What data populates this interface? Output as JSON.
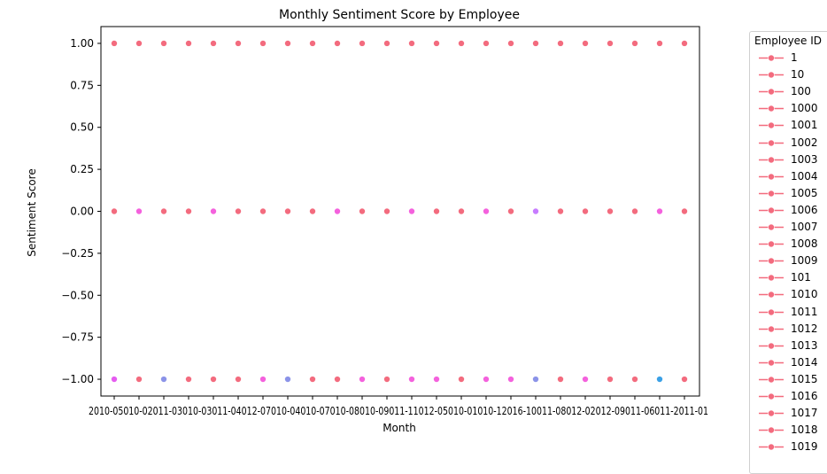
{
  "chart_data": {
    "type": "scatter",
    "title": "Monthly Sentiment Score by Employee",
    "xlabel": "Month",
    "ylabel": "Sentiment Score",
    "ylim": [
      -1.1,
      1.1
    ],
    "yticks": [
      "1.00",
      "0.75",
      "0.50",
      "0.25",
      "0.00",
      "−0.25",
      "−0.50",
      "−0.75",
      "−1.00"
    ],
    "ytick_values": [
      1.0,
      0.75,
      0.5,
      0.25,
      0.0,
      -0.25,
      -0.5,
      -0.75,
      -1.0
    ],
    "x_ticklabels_text": "2010-2050-2020-1101-2030-0301-2021-0441-2070-2040-0707-2080-2091-2011-2050-2011-2010-1206-2061-2081-2021-0201-2091-2061-2011-01",
    "x_ticklabels_text_display": "2010-05010-02011-03010-03011-04012-07010-04010-07010-08010-09011-11012-05010-01010-12016-10011-08012-02012-09011-06011-2011-01",
    "n_months": 24,
    "points": [
      {
        "x": 0,
        "y": 1.0,
        "color": "#f36b7e"
      },
      {
        "x": 1,
        "y": 1.0,
        "color": "#f36b7e"
      },
      {
        "x": 2,
        "y": 1.0,
        "color": "#f36b7e"
      },
      {
        "x": 3,
        "y": 1.0,
        "color": "#f36b7e"
      },
      {
        "x": 4,
        "y": 1.0,
        "color": "#f36b7e"
      },
      {
        "x": 5,
        "y": 1.0,
        "color": "#f36b7e"
      },
      {
        "x": 6,
        "y": 1.0,
        "color": "#f36b7e"
      },
      {
        "x": 7,
        "y": 1.0,
        "color": "#f36b7e"
      },
      {
        "x": 8,
        "y": 1.0,
        "color": "#f36b7e"
      },
      {
        "x": 9,
        "y": 1.0,
        "color": "#f36b7e"
      },
      {
        "x": 10,
        "y": 1.0,
        "color": "#f36b7e"
      },
      {
        "x": 11,
        "y": 1.0,
        "color": "#f36b7e"
      },
      {
        "x": 12,
        "y": 1.0,
        "color": "#f36b7e"
      },
      {
        "x": 13,
        "y": 1.0,
        "color": "#f36b7e"
      },
      {
        "x": 14,
        "y": 1.0,
        "color": "#f36b7e"
      },
      {
        "x": 15,
        "y": 1.0,
        "color": "#f36b7e"
      },
      {
        "x": 16,
        "y": 1.0,
        "color": "#f36b7e"
      },
      {
        "x": 17,
        "y": 1.0,
        "color": "#f36b7e"
      },
      {
        "x": 18,
        "y": 1.0,
        "color": "#f36b7e"
      },
      {
        "x": 19,
        "y": 1.0,
        "color": "#f36b7e"
      },
      {
        "x": 20,
        "y": 1.0,
        "color": "#f36b7e"
      },
      {
        "x": 21,
        "y": 1.0,
        "color": "#f36b7e"
      },
      {
        "x": 22,
        "y": 1.0,
        "color": "#f36b7e"
      },
      {
        "x": 23,
        "y": 1.0,
        "color": "#f36b7e"
      },
      {
        "x": 0,
        "y": 0.0,
        "color": "#f36b7e"
      },
      {
        "x": 1,
        "y": 0.0,
        "color": "#f461dd"
      },
      {
        "x": 2,
        "y": 0.0,
        "color": "#f36b7e"
      },
      {
        "x": 3,
        "y": 0.0,
        "color": "#f36b7e"
      },
      {
        "x": 4,
        "y": 0.0,
        "color": "#f461dd"
      },
      {
        "x": 5,
        "y": 0.0,
        "color": "#f36b7e"
      },
      {
        "x": 6,
        "y": 0.0,
        "color": "#f36b7e"
      },
      {
        "x": 7,
        "y": 0.0,
        "color": "#f36b7e"
      },
      {
        "x": 8,
        "y": 0.0,
        "color": "#f36b7e"
      },
      {
        "x": 9,
        "y": 0.0,
        "color": "#f461dd"
      },
      {
        "x": 10,
        "y": 0.0,
        "color": "#f36b7e"
      },
      {
        "x": 11,
        "y": 0.0,
        "color": "#f36b7e"
      },
      {
        "x": 12,
        "y": 0.0,
        "color": "#f461dd"
      },
      {
        "x": 13,
        "y": 0.0,
        "color": "#f36b7e"
      },
      {
        "x": 14,
        "y": 0.0,
        "color": "#f36b7e"
      },
      {
        "x": 15,
        "y": 0.0,
        "color": "#f461dd"
      },
      {
        "x": 16,
        "y": 0.0,
        "color": "#f36b7e"
      },
      {
        "x": 17,
        "y": 0.0,
        "color": "#c77cff"
      },
      {
        "x": 18,
        "y": 0.0,
        "color": "#f36b7e"
      },
      {
        "x": 19,
        "y": 0.0,
        "color": "#f36b7e"
      },
      {
        "x": 20,
        "y": 0.0,
        "color": "#f36b7e"
      },
      {
        "x": 21,
        "y": 0.0,
        "color": "#f36b7e"
      },
      {
        "x": 22,
        "y": 0.0,
        "color": "#f461dd"
      },
      {
        "x": 23,
        "y": 0.0,
        "color": "#f36b7e"
      },
      {
        "x": 0,
        "y": -1.0,
        "color": "#e55cf0"
      },
      {
        "x": 1,
        "y": -1.0,
        "color": "#f36b7e"
      },
      {
        "x": 2,
        "y": -1.0,
        "color": "#8b93e8"
      },
      {
        "x": 3,
        "y": -1.0,
        "color": "#f36b7e"
      },
      {
        "x": 4,
        "y": -1.0,
        "color": "#f36b7e"
      },
      {
        "x": 5,
        "y": -1.0,
        "color": "#f36b7e"
      },
      {
        "x": 6,
        "y": -1.0,
        "color": "#f461dd"
      },
      {
        "x": 7,
        "y": -1.0,
        "color": "#8b93e8"
      },
      {
        "x": 8,
        "y": -1.0,
        "color": "#f36b7e"
      },
      {
        "x": 9,
        "y": -1.0,
        "color": "#f36b7e"
      },
      {
        "x": 10,
        "y": -1.0,
        "color": "#f461dd"
      },
      {
        "x": 11,
        "y": -1.0,
        "color": "#f36b7e"
      },
      {
        "x": 12,
        "y": -1.0,
        "color": "#f461dd"
      },
      {
        "x": 13,
        "y": -1.0,
        "color": "#f461dd"
      },
      {
        "x": 14,
        "y": -1.0,
        "color": "#f36b7e"
      },
      {
        "x": 15,
        "y": -1.0,
        "color": "#f461dd"
      },
      {
        "x": 16,
        "y": -1.0,
        "color": "#f461dd"
      },
      {
        "x": 17,
        "y": -1.0,
        "color": "#8b93e8"
      },
      {
        "x": 18,
        "y": -1.0,
        "color": "#f36b7e"
      },
      {
        "x": 19,
        "y": -1.0,
        "color": "#f461dd"
      },
      {
        "x": 20,
        "y": -1.0,
        "color": "#f36b7e"
      },
      {
        "x": 21,
        "y": -1.0,
        "color": "#f36b7e"
      },
      {
        "x": 22,
        "y": -1.0,
        "color": "#3aa0e6"
      },
      {
        "x": 23,
        "y": -1.0,
        "color": "#f36b7e"
      }
    ],
    "legend": {
      "title": "Employee ID",
      "placement": "outside-right",
      "color": "#f36b7e",
      "entries": [
        "1",
        "10",
        "100",
        "1000",
        "1001",
        "1002",
        "1003",
        "1004",
        "1005",
        "1006",
        "1007",
        "1008",
        "1009",
        "101",
        "1010",
        "1011",
        "1012",
        "1013",
        "1014",
        "1015",
        "1016",
        "1017",
        "1018",
        "1019"
      ]
    },
    "grid": false
  }
}
